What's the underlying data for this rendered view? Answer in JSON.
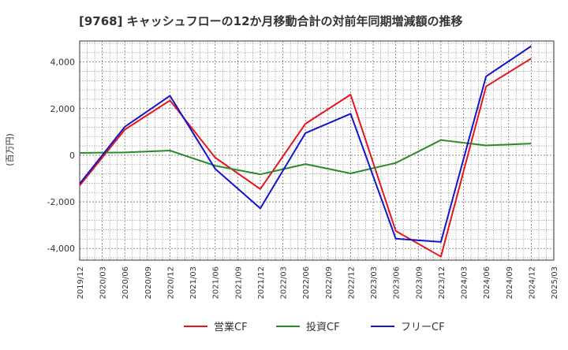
{
  "chart_data": {
    "type": "line",
    "title": "[9768]  キャッシュフローの12か月移動合計の対前年同期増減額の推移",
    "ylabel": "(百万円)",
    "xlabel": "",
    "ylim": [
      -4500,
      4900
    ],
    "yticks": [
      -4000,
      -2000,
      0,
      2000,
      4000
    ],
    "ytick_labels": [
      "-4,000",
      "-2,000",
      "0",
      "2,000",
      "4,000"
    ],
    "x_tick_labels": [
      "2019/12",
      "2020/03",
      "2020/06",
      "2020/09",
      "2020/12",
      "2021/03",
      "2021/06",
      "2021/09",
      "2021/12",
      "2022/03",
      "2022/06",
      "2022/09",
      "2022/12",
      "2023/03",
      "2023/06",
      "2023/09",
      "2023/12",
      "2024/03",
      "2024/06",
      "2024/09",
      "2024/12",
      "2025/03"
    ],
    "grid": true,
    "legend_position": "bottom",
    "series": [
      {
        "name": "営業CF",
        "color": "#e8141b",
        "x": [
          "2019/12",
          "2020/06",
          "2020/12",
          "2021/06",
          "2021/12",
          "2022/06",
          "2022/12",
          "2023/06",
          "2023/12",
          "2024/06",
          "2024/12"
        ],
        "values": [
          -1300,
          1100,
          2350,
          -100,
          -1450,
          1350,
          2600,
          -3250,
          -4350,
          2950,
          4150
        ]
      },
      {
        "name": "投資CF",
        "color": "#2a8a2a",
        "x": [
          "2019/12",
          "2020/06",
          "2020/12",
          "2021/06",
          "2021/12",
          "2022/06",
          "2022/12",
          "2023/06",
          "2023/12",
          "2024/06",
          "2024/12"
        ],
        "values": [
          100,
          120,
          200,
          -450,
          -820,
          -380,
          -780,
          -330,
          650,
          420,
          500
        ]
      },
      {
        "name": "フリーCF",
        "color": "#1414cc",
        "x": [
          "2019/12",
          "2020/06",
          "2020/12",
          "2021/06",
          "2021/12",
          "2022/06",
          "2022/12",
          "2023/06",
          "2023/12",
          "2024/06",
          "2024/12"
        ],
        "values": [
          -1220,
          1220,
          2550,
          -580,
          -2280,
          950,
          1780,
          -3580,
          -3720,
          3380,
          4680
        ]
      }
    ]
  }
}
